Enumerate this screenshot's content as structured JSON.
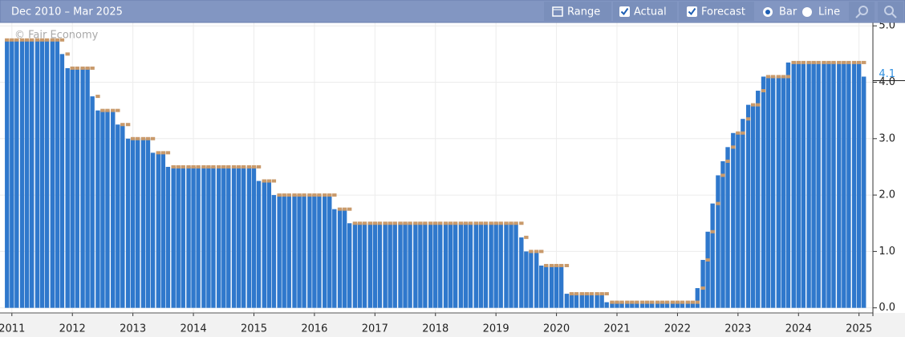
{
  "toolbar": {
    "range_text": "Dec 2010 – Mar 2025",
    "range_button": "Range",
    "bar_option": "Bar",
    "line_option": "Line"
  },
  "chart_data": {
    "type": "bar",
    "watermark": "© Fair Economy",
    "x": [
      2010.92,
      2011,
      2011.08,
      2011.17,
      2011.25,
      2011.33,
      2011.42,
      2011.5,
      2011.58,
      2011.67,
      2011.75,
      2011.83,
      2011.92,
      2012,
      2012.08,
      2012.17,
      2012.25,
      2012.33,
      2012.42,
      2012.5,
      2012.58,
      2012.67,
      2012.75,
      2012.83,
      2012.92,
      2013,
      2013.08,
      2013.17,
      2013.25,
      2013.33,
      2013.42,
      2013.5,
      2013.58,
      2013.67,
      2013.75,
      2013.83,
      2013.92,
      2014,
      2014.08,
      2014.17,
      2014.25,
      2014.33,
      2014.42,
      2014.5,
      2014.58,
      2014.67,
      2014.75,
      2014.83,
      2014.92,
      2015,
      2015.08,
      2015.17,
      2015.25,
      2015.33,
      2015.42,
      2015.5,
      2015.58,
      2015.67,
      2015.75,
      2015.83,
      2015.92,
      2016,
      2016.08,
      2016.17,
      2016.25,
      2016.33,
      2016.42,
      2016.5,
      2016.58,
      2016.67,
      2016.75,
      2016.83,
      2016.92,
      2017,
      2017.08,
      2017.17,
      2017.25,
      2017.33,
      2017.42,
      2017.5,
      2017.58,
      2017.67,
      2017.75,
      2017.83,
      2017.92,
      2018,
      2018.08,
      2018.17,
      2018.25,
      2018.33,
      2018.42,
      2018.5,
      2018.58,
      2018.67,
      2018.75,
      2018.83,
      2018.92,
      2019,
      2019.08,
      2019.17,
      2019.25,
      2019.33,
      2019.42,
      2019.5,
      2019.58,
      2019.67,
      2019.75,
      2019.83,
      2019.92,
      2020,
      2020.08,
      2020.17,
      2020.25,
      2020.33,
      2020.42,
      2020.5,
      2020.58,
      2020.67,
      2020.75,
      2020.83,
      2020.92,
      2021,
      2021.08,
      2021.17,
      2021.25,
      2021.33,
      2021.42,
      2021.5,
      2021.58,
      2021.67,
      2021.75,
      2021.83,
      2021.92,
      2022,
      2022.08,
      2022.17,
      2022.25,
      2022.33,
      2022.42,
      2022.5,
      2022.58,
      2022.67,
      2022.75,
      2022.83,
      2022.92,
      2023,
      2023.08,
      2023.17,
      2023.25,
      2023.33,
      2023.42,
      2023.5,
      2023.58,
      2023.67,
      2023.75,
      2023.83,
      2023.92,
      2024,
      2024.08,
      2024.17,
      2024.25,
      2024.33,
      2024.42,
      2024.5,
      2024.58,
      2024.67,
      2024.75,
      2024.83,
      2024.92,
      2025,
      2025.08
    ],
    "series": [
      {
        "name": "Actual",
        "color": "#2f78cc",
        "values": [
          4.75,
          4.75,
          4.75,
          4.75,
          4.75,
          4.75,
          4.75,
          4.75,
          4.75,
          4.75,
          4.75,
          4.5,
          4.25,
          4.25,
          4.25,
          4.25,
          4.25,
          3.75,
          3.5,
          3.5,
          3.5,
          3.5,
          3.25,
          3.25,
          3.0,
          3.0,
          3.0,
          3.0,
          3.0,
          2.75,
          2.75,
          2.75,
          2.5,
          2.5,
          2.5,
          2.5,
          2.5,
          2.5,
          2.5,
          2.5,
          2.5,
          2.5,
          2.5,
          2.5,
          2.5,
          2.5,
          2.5,
          2.5,
          2.5,
          2.5,
          2.25,
          2.25,
          2.25,
          2.0,
          2.0,
          2.0,
          2.0,
          2.0,
          2.0,
          2.0,
          2.0,
          2.0,
          2.0,
          2.0,
          2.0,
          1.75,
          1.75,
          1.75,
          1.5,
          1.5,
          1.5,
          1.5,
          1.5,
          1.5,
          1.5,
          1.5,
          1.5,
          1.5,
          1.5,
          1.5,
          1.5,
          1.5,
          1.5,
          1.5,
          1.5,
          1.5,
          1.5,
          1.5,
          1.5,
          1.5,
          1.5,
          1.5,
          1.5,
          1.5,
          1.5,
          1.5,
          1.5,
          1.5,
          1.5,
          1.5,
          1.5,
          1.5,
          1.25,
          1.0,
          1.0,
          1.0,
          0.75,
          0.75,
          0.75,
          0.75,
          0.75,
          0.25,
          0.25,
          0.25,
          0.25,
          0.25,
          0.25,
          0.25,
          0.25,
          0.1,
          0.1,
          0.1,
          0.1,
          0.1,
          0.1,
          0.1,
          0.1,
          0.1,
          0.1,
          0.1,
          0.1,
          0.1,
          0.1,
          0.1,
          0.1,
          0.1,
          0.1,
          0.35,
          0.85,
          1.35,
          1.85,
          2.35,
          2.6,
          2.85,
          3.1,
          3.1,
          3.35,
          3.6,
          3.6,
          3.85,
          4.1,
          4.1,
          4.1,
          4.1,
          4.1,
          4.35,
          4.35,
          4.35,
          4.35,
          4.35,
          4.35,
          4.35,
          4.35,
          4.35,
          4.35,
          4.35,
          4.35,
          4.35,
          4.35,
          4.35,
          4.1
        ]
      },
      {
        "name": "Forecast",
        "color": "#c99a6b",
        "values": [
          4.75,
          4.75,
          4.75,
          4.75,
          4.75,
          4.75,
          4.75,
          4.75,
          4.75,
          4.75,
          4.75,
          4.75,
          4.5,
          4.25,
          4.25,
          4.25,
          4.25,
          4.25,
          3.75,
          3.5,
          3.5,
          3.5,
          3.5,
          3.25,
          3.25,
          3.0,
          3.0,
          3.0,
          3.0,
          3.0,
          2.75,
          2.75,
          2.75,
          2.5,
          2.5,
          2.5,
          2.5,
          2.5,
          2.5,
          2.5,
          2.5,
          2.5,
          2.5,
          2.5,
          2.5,
          2.5,
          2.5,
          2.5,
          2.5,
          2.5,
          2.5,
          2.25,
          2.25,
          2.25,
          2.0,
          2.0,
          2.0,
          2.0,
          2.0,
          2.0,
          2.0,
          2.0,
          2.0,
          2.0,
          2.0,
          2.0,
          1.75,
          1.75,
          1.75,
          1.5,
          1.5,
          1.5,
          1.5,
          1.5,
          1.5,
          1.5,
          1.5,
          1.5,
          1.5,
          1.5,
          1.5,
          1.5,
          1.5,
          1.5,
          1.5,
          1.5,
          1.5,
          1.5,
          1.5,
          1.5,
          1.5,
          1.5,
          1.5,
          1.5,
          1.5,
          1.5,
          1.5,
          1.5,
          1.5,
          1.5,
          1.5,
          1.5,
          1.5,
          1.25,
          1.0,
          1.0,
          1.0,
          0.75,
          0.75,
          0.75,
          0.75,
          0.75,
          0.25,
          0.25,
          0.25,
          0.25,
          0.25,
          0.25,
          0.25,
          0.25,
          0.1,
          0.1,
          0.1,
          0.1,
          0.1,
          0.1,
          0.1,
          0.1,
          0.1,
          0.1,
          0.1,
          0.1,
          0.1,
          0.1,
          0.1,
          0.1,
          0.1,
          0.1,
          0.35,
          0.85,
          1.35,
          1.85,
          2.35,
          2.6,
          2.85,
          3.1,
          3.1,
          3.35,
          3.6,
          3.6,
          3.85,
          4.1,
          4.1,
          4.1,
          4.1,
          4.1,
          4.35,
          4.35,
          4.35,
          4.35,
          4.35,
          4.35,
          4.35,
          4.35,
          4.35,
          4.35,
          4.35,
          4.35,
          4.35,
          4.35,
          4.35
        ]
      }
    ],
    "xlim": [
      2010.87,
      2025.15
    ],
    "xticks": [
      2011,
      2012,
      2013,
      2014,
      2015,
      2016,
      2017,
      2018,
      2019,
      2020,
      2021,
      2022,
      2023,
      2024,
      2025
    ],
    "ylim": [
      -0.09,
      5.06
    ],
    "yticks": [
      {
        "value": 0,
        "label": "0.0"
      },
      {
        "value": 1,
        "label": "1.0"
      },
      {
        "value": 2,
        "label": "2.0"
      },
      {
        "value": 3,
        "label": "3.0"
      },
      {
        "value": 4,
        "label": "4.0"
      },
      {
        "value": 5,
        "label": "5.0"
      }
    ],
    "current_value": {
      "value": 4.1,
      "label": "4.1"
    },
    "grid": true
  }
}
